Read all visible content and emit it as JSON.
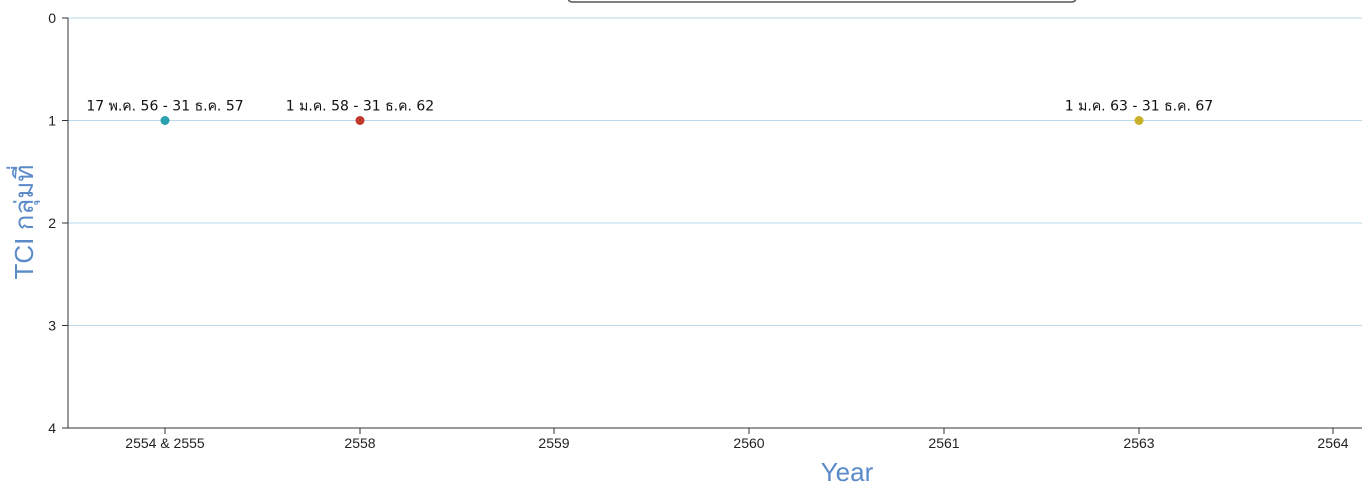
{
  "chart_data": {
    "type": "scatter",
    "title": "",
    "xlabel": "Year",
    "ylabel": "TCI กลุ่มที่",
    "ylim": [
      0,
      4
    ],
    "y_reversed": true,
    "y_ticks": [
      "0",
      "1",
      "2",
      "3",
      "4"
    ],
    "x_categories": [
      "2554 & 2555",
      "2558",
      "2559",
      "2560",
      "2561",
      "2563",
      "2564"
    ],
    "grid": "horizontal",
    "points": [
      {
        "x": "2554 & 2555",
        "y": 1,
        "label": "17 พ.ค. 56 - 31 ธ.ค. 57",
        "color": "#2aa0b0"
      },
      {
        "x": "2558",
        "y": 1,
        "label": "1 ม.ค. 58 - 31 ธ.ค. 62",
        "color": "#c0392b"
      },
      {
        "x": "2563",
        "y": 1,
        "label": "1 ม.ค. 63 - 31 ธ.ค. 67",
        "color": "#c9b02a"
      }
    ],
    "colors": {
      "grid": "#b9d8ea",
      "axis_title": "#5b8ac9"
    }
  }
}
